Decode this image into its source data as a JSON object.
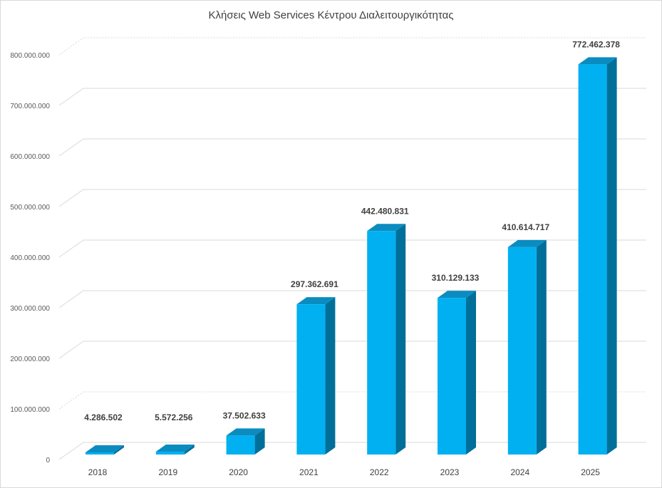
{
  "chart_data": {
    "type": "bar",
    "title": "Κλήσεις Web Services Κέντρου Διαλειτουργικότητας",
    "xlabel": "",
    "ylabel": "",
    "categories": [
      "2018",
      "2019",
      "2020",
      "2021",
      "2022",
      "2023",
      "2024",
      "2025"
    ],
    "values": [
      4286502,
      5572256,
      37502633,
      297362691,
      442480831,
      310129133,
      410614717,
      772462378
    ],
    "data_labels": [
      "4.286.502",
      "5.572.256",
      "37.502.633",
      "297.362.691",
      "442.480.831",
      "310.129.133",
      "410.614.717",
      "772.462.378"
    ],
    "ylim": [
      0,
      800000000
    ],
    "yticks": [
      0,
      100000000,
      200000000,
      300000000,
      400000000,
      500000000,
      600000000,
      700000000,
      800000000
    ],
    "ytick_labels": [
      "0",
      "100.000.000",
      "200.000.000",
      "300.000.000",
      "400.000.000",
      "500.000.000",
      "600.000.000",
      "700.000.000",
      "800.000.000"
    ],
    "grid": true,
    "legend": "none",
    "colors": {
      "front": "#00b0f0",
      "top": "#0a8cc0",
      "side": "#006f99",
      "grid": "#d9d9d9"
    }
  }
}
